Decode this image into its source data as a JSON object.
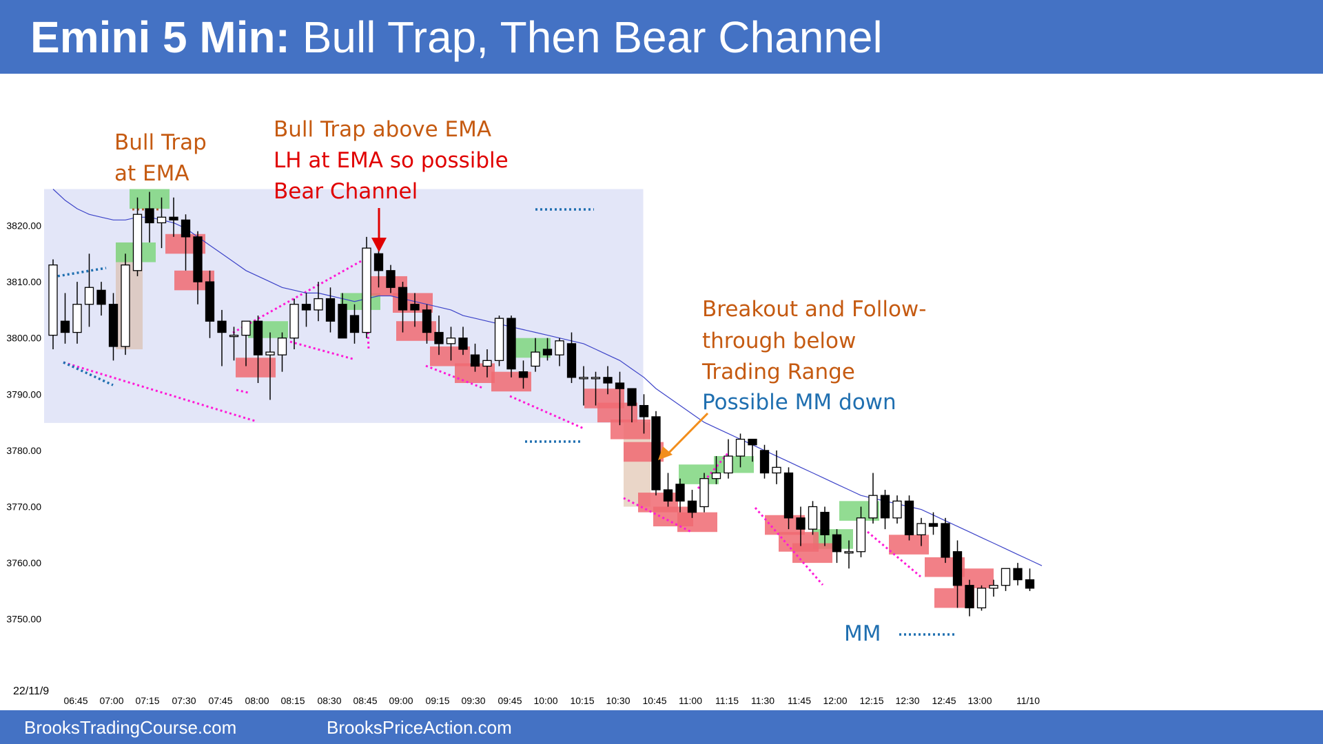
{
  "header": {
    "title_bold": "Emini 5 Min:",
    "title_rest": "Bull Trap, Then Bear Channel"
  },
  "footer": {
    "left_link": "BrooksTradingCourse.com",
    "right_link": "BrooksPriceAction.com"
  },
  "annotations": {
    "bull_trap_1": "Bull Trap",
    "bull_trap_2": "at EMA",
    "trap_ema_1": "Bull Trap above EMA",
    "trap_ema_2": "LH at EMA so possible",
    "trap_ema_3": "Bear Channel",
    "breakout_1": "Breakout and Follow-",
    "breakout_2": "through below",
    "breakout_3": "Trading Range",
    "breakout_4": "Possible  MM down",
    "mm_label": "MM"
  },
  "colors": {
    "header_bg": "#4472c4",
    "range_box": "#e3e6f8",
    "ema": "#3c43c8",
    "bull_highlight": "#7fd67f",
    "bear_highlight": "#f06a72",
    "signal_bar": "#d9b49b",
    "magenta": "#ff1ad6",
    "blue_dots": "#1f6fb0",
    "orange_text": "#c55a11",
    "red_text": "#e00000"
  },
  "chart_data": {
    "type": "candlestick",
    "date_label": "22/11/9",
    "ylim": [
      3748,
      3828
    ],
    "y_ticks": [
      3750,
      3760,
      3770,
      3780,
      3790,
      3800,
      3810,
      3820
    ],
    "y_tick_labels": [
      "3750.00",
      "3760.00",
      "3770.00",
      "3780.00",
      "3790.00",
      "3800.00",
      "3810.00",
      "3820.00"
    ],
    "x_tick_labels": [
      "06:45",
      "07:00",
      "07:15",
      "07:30",
      "07:45",
      "08:00",
      "08:15",
      "08:30",
      "08:45",
      "09:00",
      "09:15",
      "09:30",
      "09:45",
      "10:00",
      "10:15",
      "10:30",
      "10:45",
      "11:00",
      "11:15",
      "11:30",
      "11:45",
      "12:00",
      "12:15",
      "12:30",
      "12:45",
      "13:00",
      "11/10"
    ],
    "trading_range": {
      "top": 3826.5,
      "bottom": 3784.9,
      "start_bar": 0,
      "end_bar": 47
    },
    "mm_target": 3750.8,
    "candles": [
      {
        "o": 3800.5,
        "h": 3814,
        "l": 3798,
        "c": 3813
      },
      {
        "o": 3803,
        "h": 3808,
        "l": 3799,
        "c": 3801
      },
      {
        "o": 3801,
        "h": 3810,
        "l": 3799,
        "c": 3806
      },
      {
        "o": 3806,
        "h": 3815,
        "l": 3802,
        "c": 3809
      },
      {
        "o": 3808.5,
        "h": 3810,
        "l": 3804,
        "c": 3806
      },
      {
        "o": 3806,
        "h": 3808,
        "l": 3796,
        "c": 3798.5
      },
      {
        "o": 3798.5,
        "h": 3815,
        "l": 3797,
        "c": 3813
      },
      {
        "o": 3812,
        "h": 3825,
        "l": 3811,
        "c": 3822
      },
      {
        "o": 3823,
        "h": 3826,
        "l": 3817,
        "c": 3820.5
      },
      {
        "o": 3820.5,
        "h": 3825,
        "l": 3816,
        "c": 3821.5
      },
      {
        "o": 3821.5,
        "h": 3825,
        "l": 3818,
        "c": 3821
      },
      {
        "o": 3821,
        "h": 3822,
        "l": 3812,
        "c": 3818
      },
      {
        "o": 3818,
        "h": 3819,
        "l": 3806,
        "c": 3810
      },
      {
        "o": 3810,
        "h": 3812,
        "l": 3800,
        "c": 3803
      },
      {
        "o": 3803,
        "h": 3805,
        "l": 3795,
        "c": 3801
      },
      {
        "o": 3800.5,
        "h": 3802,
        "l": 3796,
        "c": 3800.5
      },
      {
        "o": 3800.5,
        "h": 3803,
        "l": 3795,
        "c": 3803
      },
      {
        "o": 3803,
        "h": 3804,
        "l": 3792,
        "c": 3797
      },
      {
        "o": 3797,
        "h": 3801,
        "l": 3789,
        "c": 3797.5
      },
      {
        "o": 3797,
        "h": 3801,
        "l": 3794,
        "c": 3800
      },
      {
        "o": 3800,
        "h": 3807,
        "l": 3798,
        "c": 3806
      },
      {
        "o": 3806,
        "h": 3808,
        "l": 3802,
        "c": 3805
      },
      {
        "o": 3805,
        "h": 3810,
        "l": 3803,
        "c": 3807
      },
      {
        "o": 3807,
        "h": 3809,
        "l": 3801,
        "c": 3803
      },
      {
        "o": 3806,
        "h": 3808,
        "l": 3800,
        "c": 3800
      },
      {
        "o": 3804,
        "h": 3806,
        "l": 3799,
        "c": 3801
      },
      {
        "o": 3801,
        "h": 3818,
        "l": 3800,
        "c": 3816
      },
      {
        "o": 3815,
        "h": 3817,
        "l": 3809,
        "c": 3812
      },
      {
        "o": 3812,
        "h": 3813,
        "l": 3808,
        "c": 3809
      },
      {
        "o": 3809,
        "h": 3810,
        "l": 3801,
        "c": 3805
      },
      {
        "o": 3806,
        "h": 3808,
        "l": 3802,
        "c": 3805
      },
      {
        "o": 3805,
        "h": 3806,
        "l": 3799,
        "c": 3801
      },
      {
        "o": 3801,
        "h": 3804,
        "l": 3797,
        "c": 3799
      },
      {
        "o": 3799,
        "h": 3802,
        "l": 3796,
        "c": 3800
      },
      {
        "o": 3800,
        "h": 3802,
        "l": 3797,
        "c": 3798
      },
      {
        "o": 3797,
        "h": 3799,
        "l": 3794,
        "c": 3795
      },
      {
        "o": 3795,
        "h": 3798,
        "l": 3793,
        "c": 3796
      },
      {
        "o": 3796,
        "h": 3804,
        "l": 3795,
        "c": 3803.5
      },
      {
        "o": 3803.5,
        "h": 3804,
        "l": 3793,
        "c": 3794.5
      },
      {
        "o": 3794,
        "h": 3796,
        "l": 3791,
        "c": 3793
      },
      {
        "o": 3795,
        "h": 3800,
        "l": 3794,
        "c": 3797.5
      },
      {
        "o": 3798,
        "h": 3800,
        "l": 3796,
        "c": 3797
      },
      {
        "o": 3797,
        "h": 3800,
        "l": 3795,
        "c": 3799.5
      },
      {
        "o": 3799,
        "h": 3801,
        "l": 3792,
        "c": 3793
      },
      {
        "o": 3793,
        "h": 3795,
        "l": 3788,
        "c": 3793
      },
      {
        "o": 3793,
        "h": 3794,
        "l": 3788,
        "c": 3793
      },
      {
        "o": 3793,
        "h": 3795,
        "l": 3790,
        "c": 3792
      },
      {
        "o": 3792,
        "h": 3794,
        "l": 3784.5,
        "c": 3791
      },
      {
        "o": 3791,
        "h": 3791,
        "l": 3785,
        "c": 3788
      },
      {
        "o": 3788,
        "h": 3790,
        "l": 3783,
        "c": 3786
      },
      {
        "o": 3786,
        "h": 3787,
        "l": 3772,
        "c": 3773
      },
      {
        "o": 3773,
        "h": 3776,
        "l": 3770,
        "c": 3771
      },
      {
        "o": 3774,
        "h": 3775,
        "l": 3769,
        "c": 3771
      },
      {
        "o": 3771,
        "h": 3773,
        "l": 3768,
        "c": 3769
      },
      {
        "o": 3770,
        "h": 3776,
        "l": 3769,
        "c": 3775
      },
      {
        "o": 3775,
        "h": 3779,
        "l": 3774,
        "c": 3776
      },
      {
        "o": 3776,
        "h": 3782,
        "l": 3775,
        "c": 3779
      },
      {
        "o": 3779,
        "h": 3783,
        "l": 3777,
        "c": 3782
      },
      {
        "o": 3782,
        "h": 3782,
        "l": 3778,
        "c": 3781
      },
      {
        "o": 3780,
        "h": 3781,
        "l": 3775,
        "c": 3776
      },
      {
        "o": 3776,
        "h": 3780,
        "l": 3774,
        "c": 3777
      },
      {
        "o": 3776,
        "h": 3777,
        "l": 3766,
        "c": 3768
      },
      {
        "o": 3768,
        "h": 3770,
        "l": 3763,
        "c": 3766
      },
      {
        "o": 3766,
        "h": 3771,
        "l": 3765,
        "c": 3770
      },
      {
        "o": 3769,
        "h": 3770,
        "l": 3763,
        "c": 3765
      },
      {
        "o": 3765,
        "h": 3766,
        "l": 3760,
        "c": 3762
      },
      {
        "o": 3762,
        "h": 3764,
        "l": 3759,
        "c": 3762
      },
      {
        "o": 3762,
        "h": 3770,
        "l": 3761,
        "c": 3768
      },
      {
        "o": 3768,
        "h": 3776,
        "l": 3767,
        "c": 3772
      },
      {
        "o": 3772,
        "h": 3773,
        "l": 3766,
        "c": 3768
      },
      {
        "o": 3768,
        "h": 3772,
        "l": 3767,
        "c": 3771
      },
      {
        "o": 3771,
        "h": 3772,
        "l": 3764,
        "c": 3765
      },
      {
        "o": 3765,
        "h": 3768,
        "l": 3763,
        "c": 3767
      },
      {
        "o": 3767,
        "h": 3769,
        "l": 3765,
        "c": 3766.5
      },
      {
        "o": 3767,
        "h": 3768,
        "l": 3760,
        "c": 3761
      },
      {
        "o": 3762,
        "h": 3764,
        "l": 3752,
        "c": 3756
      },
      {
        "o": 3756,
        "h": 3757,
        "l": 3750.5,
        "c": 3752
      },
      {
        "o": 3752,
        "h": 3756,
        "l": 3751.5,
        "c": 3755.5
      },
      {
        "o": 3755.5,
        "h": 3757,
        "l": 3754,
        "c": 3756
      },
      {
        "o": 3756,
        "h": 3759,
        "l": 3755,
        "c": 3759
      },
      {
        "o": 3759,
        "h": 3760,
        "l": 3756,
        "c": 3757
      },
      {
        "o": 3757,
        "h": 3759,
        "l": 3755,
        "c": 3755.5
      }
    ],
    "ema": [
      3826.5,
      3824.5,
      3823,
      3822,
      3821.5,
      3821,
      3821,
      3821.5,
      3821.5,
      3821,
      3820.5,
      3819.5,
      3818,
      3816.5,
      3815,
      3813.5,
      3812,
      3811,
      3810,
      3809,
      3808.5,
      3808,
      3808,
      3807.5,
      3807,
      3806.5,
      3807,
      3807.5,
      3807.5,
      3807,
      3806.5,
      3806,
      3805.5,
      3805,
      3804,
      3803.5,
      3803,
      3802.5,
      3802,
      3801.5,
      3801,
      3800.5,
      3800,
      3799.5,
      3799,
      3798,
      3797,
      3796,
      3794.5,
      3793,
      3791,
      3789.5,
      3788,
      3786.5,
      3785,
      3784,
      3783,
      3782,
      3781,
      3780,
      3779,
      3778,
      3777,
      3776,
      3775,
      3774,
      3773,
      3772,
      3771.5,
      3771,
      3770.5,
      3770,
      3769.5,
      3768.5,
      3767.5,
      3766.5,
      3765.5,
      3764.5,
      3763.5,
      3762.5,
      3761.5,
      3760.5,
      3759.5
    ]
  }
}
